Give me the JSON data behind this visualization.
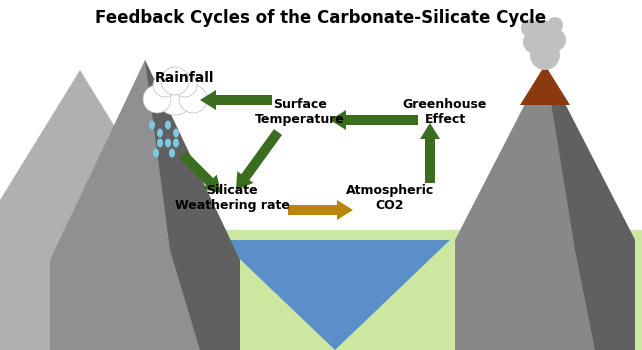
{
  "title": "Feedback Cycles of the Carbonate-Silicate Cycle",
  "title_fontsize": 12,
  "title_fontweight": "bold",
  "background_color": "#ffffff",
  "ground_color": "#cce8a0",
  "ocean_color": "#5b8fc9",
  "arrow_green": "#3a6e1e",
  "arrow_gold": "#b8860b",
  "labels": {
    "rainfall": "Rainfall",
    "surface_temp": "Surface\nTemperature",
    "greenhouse": "Greenhouse\nEffect",
    "silicate": "Silicate\nWeathering rate",
    "atm_co2": "Atmospheric\nCO2"
  },
  "label_fontsize": 9,
  "label_fontweight": "bold"
}
